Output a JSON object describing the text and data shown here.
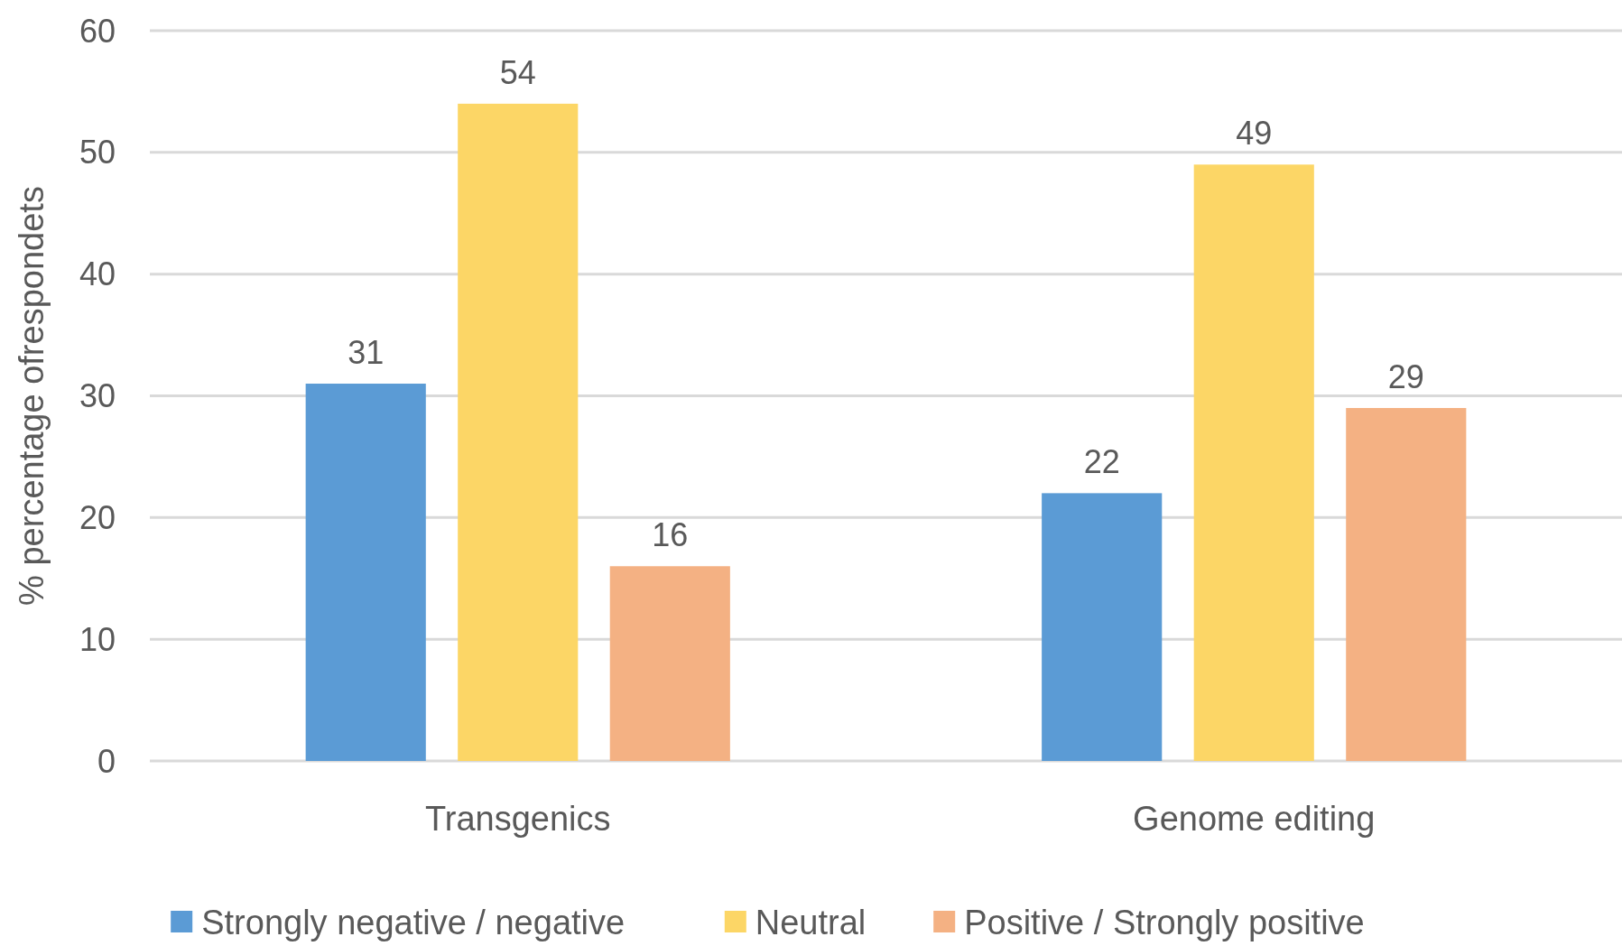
{
  "chart_data": {
    "type": "bar",
    "ylabel": "% percentage ofrespondets",
    "categories": [
      "Transgenics",
      "Genome editing"
    ],
    "series": [
      {
        "name": "Strongly negative / negative",
        "color": "#5b9bd5",
        "values": [
          31,
          22
        ]
      },
      {
        "name": "Neutral",
        "color": "#fcd666",
        "values": [
          54,
          49
        ]
      },
      {
        "name": "Positive / Strongly positive",
        "color": "#f4b183",
        "values": [
          16,
          29
        ]
      }
    ],
    "ylim": [
      0,
      60
    ],
    "yticks": [
      0,
      10,
      20,
      30,
      40,
      50,
      60
    ],
    "grid": "y",
    "data_labels": true,
    "legend": "bottom"
  }
}
